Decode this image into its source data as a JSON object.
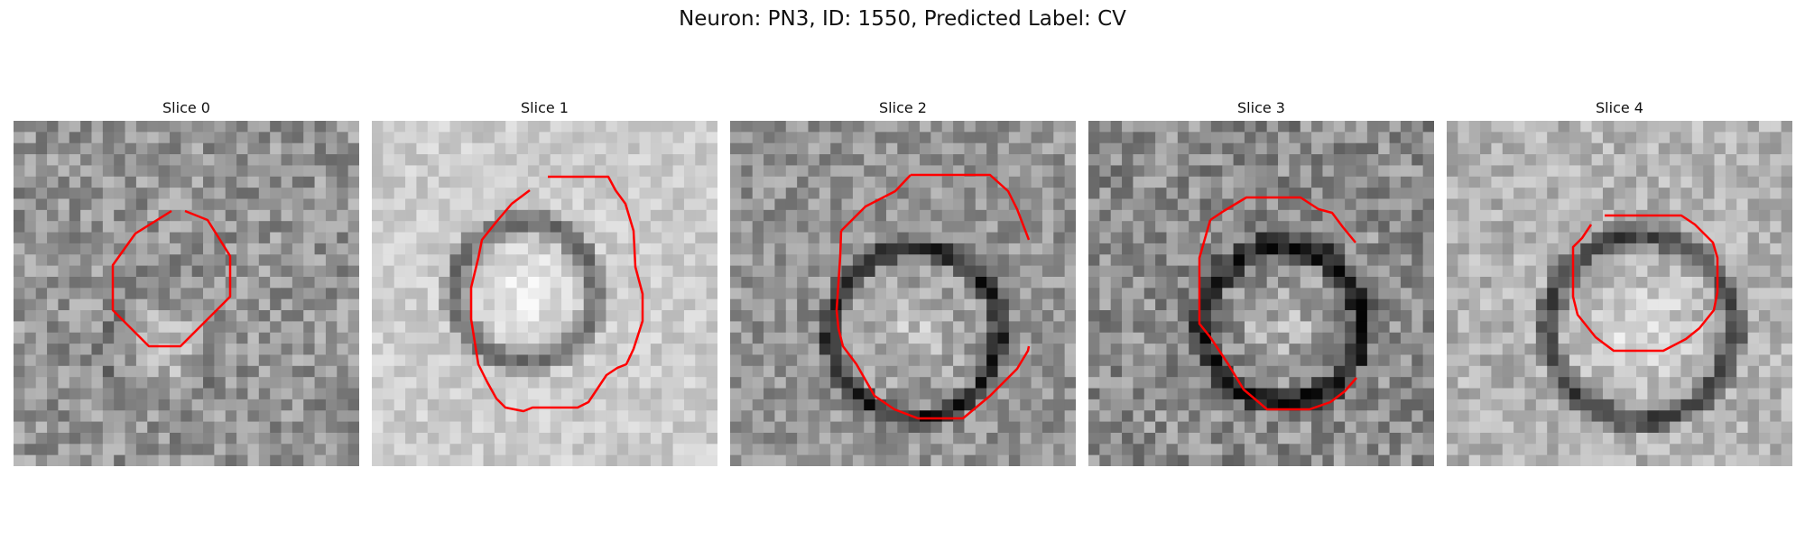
{
  "figure": {
    "title": "Neuron: PN3, ID: 1550, Predicted Label: CV"
  },
  "panels": [
    {
      "title": "Slice 0"
    },
    {
      "title": "Slice 1"
    },
    {
      "title": "Slice 2"
    },
    {
      "title": "Slice 3"
    },
    {
      "title": "Slice 4"
    }
  ],
  "colors": {
    "contour": "#ff0000",
    "background": "#ffffff"
  }
}
